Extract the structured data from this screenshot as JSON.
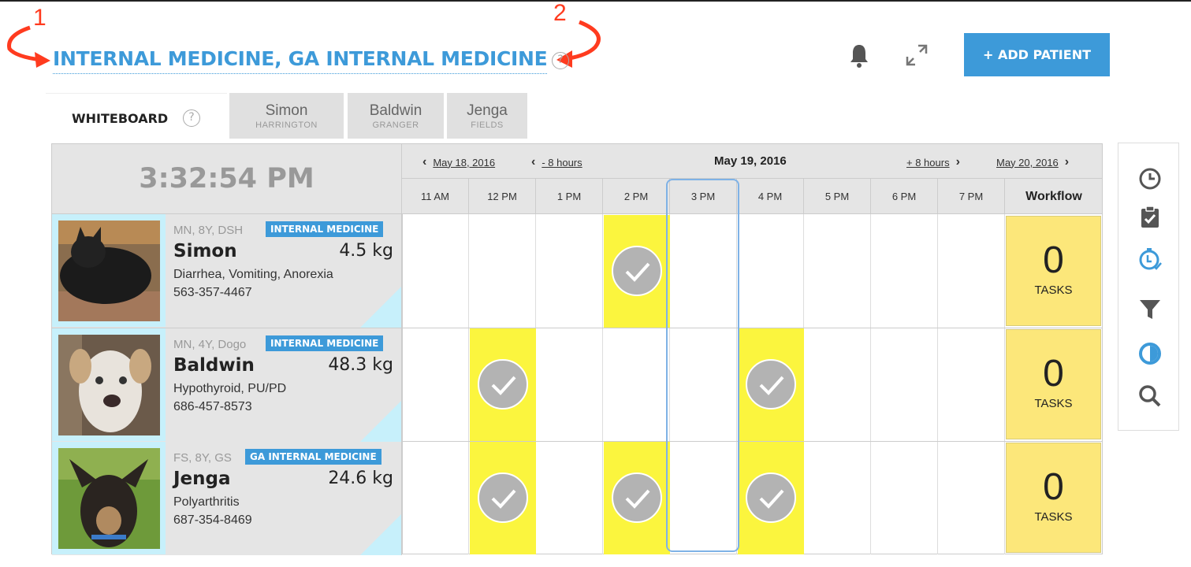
{
  "header": {
    "title": "INTERNAL MEDICINE, GA INTERNAL MEDICINE",
    "help": "?",
    "add_patient": "+ ADD PATIENT"
  },
  "tabs": {
    "whiteboard": "WHITEBOARD",
    "help": "?",
    "patients": [
      {
        "first": "Simon",
        "last": "HARRINGTON"
      },
      {
        "first": "Baldwin",
        "last": "GRANGER"
      },
      {
        "first": "Jenga",
        "last": "FIELDS"
      }
    ]
  },
  "board": {
    "clock": "3:32:54 PM",
    "nav": {
      "prev_day": "May 18, 2016",
      "prev_hours": "- 8 hours",
      "current_date": "May 19, 2016",
      "next_hours": "+ 8 hours",
      "next_day": "May 20, 2016"
    },
    "hours": [
      "11 AM",
      "12 PM",
      "1 PM",
      "2 PM",
      "3 PM",
      "4 PM",
      "5 PM",
      "6 PM",
      "7 PM"
    ],
    "workflow_label": "Workflow",
    "rows": [
      {
        "signalment": "MN, 8Y, DSH",
        "department": "INTERNAL MEDICINE",
        "name": "Simon",
        "weight": "4.5 kg",
        "conditions": "Diarrhea, Vomiting, Anorexia",
        "phone": "563-357-4467",
        "task_hours": [
          "2 PM"
        ],
        "tasks_count": "0",
        "tasks_label": "TASKS"
      },
      {
        "signalment": "MN, 4Y, Dogo",
        "department": "INTERNAL MEDICINE",
        "name": "Baldwin",
        "weight": "48.3 kg",
        "conditions": "Hypothyroid, PU/PD",
        "phone": "686-457-8573",
        "task_hours": [
          "12 PM",
          "4 PM"
        ],
        "tasks_count": "0",
        "tasks_label": "TASKS"
      },
      {
        "signalment": "FS, 8Y, GS",
        "department": "GA INTERNAL MEDICINE",
        "name": "Jenga",
        "weight": "24.6 kg",
        "conditions": "Polyarthritis",
        "phone": "687-354-8469",
        "task_hours": [
          "12 PM",
          "2 PM",
          "4 PM"
        ],
        "tasks_count": "0",
        "tasks_label": "TASKS"
      }
    ]
  },
  "toolbar": {
    "icons": [
      "clock-icon",
      "clipboard-check-icon",
      "timer-check-icon",
      "filter-icon",
      "contrast-icon",
      "search-icon"
    ],
    "accent": "#3d9ad9"
  },
  "annotations": {
    "marker_1": "1",
    "marker_2": "2",
    "arrow_color": "#ff3b1f"
  }
}
